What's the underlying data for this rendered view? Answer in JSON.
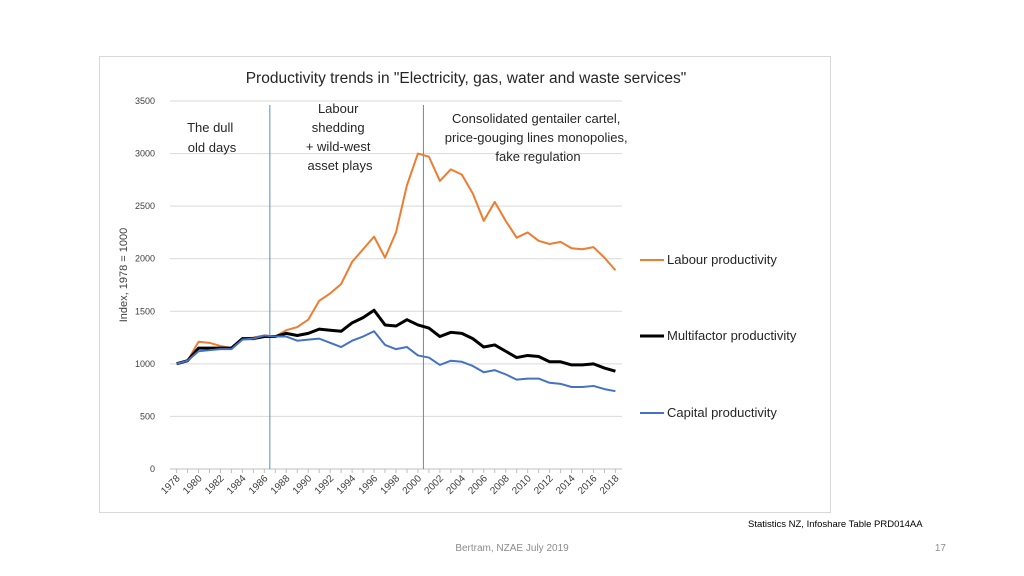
{
  "chart_data": {
    "type": "line",
    "title": "Productivity trends in \"Electricity, gas, water and waste services\"",
    "ylabel": "Index, 1978 = 1000",
    "xlabel": "",
    "ylim": [
      0,
      3500
    ],
    "yticks": [
      0,
      500,
      1000,
      1500,
      2000,
      2500,
      3000,
      3500
    ],
    "xticks": [
      1978,
      1980,
      1982,
      1984,
      1986,
      1988,
      1990,
      1992,
      1994,
      1996,
      1998,
      2000,
      2002,
      2004,
      2006,
      2008,
      2010,
      2012,
      2014,
      2016,
      2018
    ],
    "x": [
      1978,
      1979,
      1980,
      1981,
      1982,
      1983,
      1984,
      1985,
      1986,
      1987,
      1988,
      1989,
      1990,
      1991,
      1992,
      1993,
      1994,
      1995,
      1996,
      1997,
      1998,
      1999,
      2000,
      2001,
      2002,
      2003,
      2004,
      2005,
      2006,
      2007,
      2008,
      2009,
      2010,
      2011,
      2012,
      2013,
      2014,
      2015,
      2016,
      2017,
      2018
    ],
    "series": [
      {
        "name": "Labour productivity",
        "color": "#ED7D31",
        "values": [
          1000,
          1030,
          1210,
          1200,
          1170,
          1150,
          1240,
          1250,
          1270,
          1260,
          1320,
          1350,
          1420,
          1600,
          1670,
          1760,
          1970,
          2090,
          2210,
          2010,
          2250,
          2700,
          3000,
          2970,
          2740,
          2850,
          2800,
          2620,
          2360,
          2540,
          2360,
          2200,
          2250,
          2170,
          2140,
          2160,
          2100,
          2090,
          2110,
          2010,
          1890
        ]
      },
      {
        "name": "Multifactor productivity",
        "color": "#000000",
        "values": [
          1000,
          1030,
          1150,
          1150,
          1150,
          1150,
          1240,
          1240,
          1260,
          1260,
          1290,
          1270,
          1290,
          1330,
          1320,
          1310,
          1390,
          1440,
          1510,
          1370,
          1360,
          1420,
          1370,
          1340,
          1260,
          1300,
          1290,
          1240,
          1160,
          1180,
          1120,
          1060,
          1080,
          1070,
          1020,
          1020,
          990,
          990,
          1000,
          960,
          930
        ]
      },
      {
        "name": "Capital productivity",
        "color": "#4472C4",
        "values": [
          1000,
          1030,
          1120,
          1130,
          1140,
          1140,
          1230,
          1240,
          1270,
          1260,
          1260,
          1220,
          1230,
          1240,
          1200,
          1160,
          1220,
          1260,
          1310,
          1180,
          1140,
          1160,
          1080,
          1060,
          990,
          1030,
          1020,
          980,
          920,
          940,
          900,
          850,
          860,
          860,
          820,
          810,
          780,
          780,
          790,
          760,
          740
        ]
      }
    ],
    "vlines": [
      1986.5,
      2000.5
    ],
    "annotations": [
      {
        "id": "dull",
        "lines": [
          "The dull",
          "old days"
        ]
      },
      {
        "id": "shed",
        "lines": [
          "Labour",
          "shedding",
          "+ wild-west",
          "asset plays"
        ]
      },
      {
        "id": "cartel",
        "lines": [
          "Consolidated gentailer cartel,",
          "price-gouging lines monopolies,",
          "fake regulation"
        ]
      }
    ]
  },
  "footer": {
    "source": "Statistics NZ, Infoshare Table PRD014AA",
    "presenter": "Bertram, NZAE July 2019",
    "page_number": "17"
  }
}
